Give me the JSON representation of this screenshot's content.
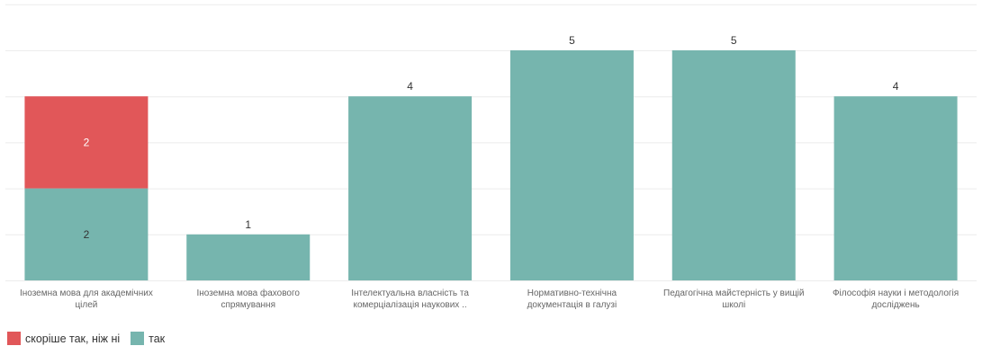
{
  "chart_data": {
    "type": "bar",
    "stacked": true,
    "categories": [
      "Іноземна мова для академічних цілей",
      "Іноземна мова фахового спрямування",
      "Інтелектуальна власність та комерціалізація наукових ..",
      "Нормативно-технічна документація в галузі",
      "Педагогічна майстерність у вищій школі",
      "Філософія науки і методологія досліджень"
    ],
    "category_lines": [
      [
        "Іноземна мова для академічних",
        "цілей"
      ],
      [
        "Іноземна мова фахового",
        "спрямування"
      ],
      [
        "Інтелектуальна власність та",
        "комерціалізація наукових .."
      ],
      [
        "Нормативно-технічна",
        "документація в галузі"
      ],
      [
        "Педагогічна майстерність у вищій",
        "школі"
      ],
      [
        "Філософія науки і методологія",
        "досліджень"
      ]
    ],
    "series": [
      {
        "name": "так",
        "color": "#76b5ae",
        "values": [
          2,
          1,
          4,
          5,
          5,
          4
        ]
      },
      {
        "name": "скоріше так, ніж ні",
        "color": "#e15759",
        "values": [
          2,
          0,
          0,
          0,
          0,
          0
        ]
      }
    ],
    "totals": [
      4,
      1,
      4,
      5,
      5,
      4
    ],
    "ylim": [
      0,
      6
    ],
    "grid": true,
    "legend_position": "bottom-left"
  },
  "legend": [
    {
      "label": "скоріше так, ніж ні",
      "color": "#e15759"
    },
    {
      "label": "так",
      "color": "#76b5ae"
    }
  ]
}
